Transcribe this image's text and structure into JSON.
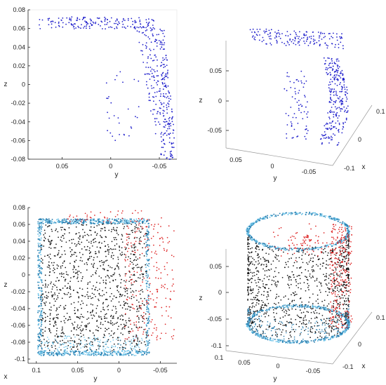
{
  "colors": {
    "blue": "#2222cc",
    "black": "#111111",
    "red": "#dd2222",
    "teal": "#2a7fb0",
    "light_blue": "#6ec3e8"
  },
  "chart_data": [
    {
      "panel": "top-left",
      "type": "scatter",
      "title": "",
      "xlabel": "y",
      "ylabel": "z",
      "x_reversed": true,
      "xlim": [
        0.085,
        -0.068
      ],
      "ylim": [
        -0.08,
        0.08
      ],
      "xticks": [
        "0.05",
        "0",
        "-0.05"
      ],
      "yticks": [
        "0.08",
        "0.06",
        "0.04",
        "0.02",
        "0",
        "-0.02",
        "-0.04",
        "-0.06",
        "-0.08"
      ],
      "series": [
        {
          "color": "#2222cc",
          "regions": [
            {
              "shape": "band",
              "x": [
                0.075,
                -0.045
              ],
              "z": [
                0.058,
                0.074
              ],
              "count": 170
            },
            {
              "shape": "column",
              "x_top": [
                -0.025,
                -0.055
              ],
              "x_bottom": [
                -0.05,
                -0.068
              ],
              "z": [
                -0.08,
                0.06
              ],
              "count": 300
            },
            {
              "shape": "sparse",
              "x": [
                0.005,
                -0.03
              ],
              "z": [
                -0.06,
                0.02
              ],
              "count": 30
            }
          ]
        }
      ]
    },
    {
      "panel": "top-right",
      "type": "scatter3d",
      "title": "",
      "xlabel": "x",
      "ylabel": "y",
      "zlabel": "z",
      "ylim": [
        0.07,
        -0.07
      ],
      "xlim": [
        -0.1,
        0.1
      ],
      "zlim": [
        -0.08,
        0.08
      ],
      "yticks": [
        "0.05",
        "0",
        "-0.05"
      ],
      "xticks": [
        "0.1",
        "0",
        "-0.1"
      ],
      "zticks": [
        "0.05",
        "0",
        "-0.05"
      ],
      "series": [
        {
          "color": "#2222cc",
          "regions": [
            {
              "shape": "band",
              "count": 160
            },
            {
              "shape": "column",
              "count": 260
            }
          ]
        }
      ]
    },
    {
      "panel": "bottom-left",
      "type": "scatter",
      "title": "",
      "xlabel": "y",
      "ylabel": "z",
      "x_side_label": "x",
      "x_reversed": true,
      "xlim": [
        0.11,
        -0.07
      ],
      "ylim": [
        -0.105,
        0.08
      ],
      "xticks": [
        "0.1",
        "0.05",
        "0",
        "-0.05"
      ],
      "yticks": [
        "0.08",
        "0.06",
        "0.04",
        "0.02",
        "0",
        "-0.02",
        "-0.04",
        "-0.06",
        "-0.08",
        "-0.1"
      ],
      "series": [
        {
          "name_hint": "cylinder interior",
          "color": "#111111",
          "shape": "fill",
          "x": [
            0.09,
            -0.045
          ],
          "z": [
            -0.09,
            0.065
          ],
          "count": 1300
        },
        {
          "name_hint": "cylinder rim",
          "color": "#2a7fb0",
          "shape": "rim",
          "count": 900
        },
        {
          "name_hint": "outliers",
          "color": "#dd2222",
          "shape": "right-edge",
          "x": [
            -0.03,
            -0.065
          ],
          "z": [
            -0.08,
            0.075
          ],
          "count": 250
        }
      ]
    },
    {
      "panel": "bottom-right",
      "type": "scatter3d",
      "title": "",
      "xlabel": "x",
      "ylabel": "y",
      "zlabel": "z",
      "ylim": [
        0.1,
        -0.07
      ],
      "xlim": [
        -0.1,
        0.1
      ],
      "zlim": [
        -0.1,
        0.07
      ],
      "yticks": [
        "0.1",
        "0.05",
        "0",
        "-0.05"
      ],
      "xticks": [
        "0.1",
        "0",
        "-0.1"
      ],
      "zticks": [
        "0.05",
        "0",
        "-0.05",
        "-0.1"
      ],
      "series": [
        {
          "name_hint": "cylinder interior",
          "color": "#111111",
          "count": 1100
        },
        {
          "name_hint": "cylinder rim",
          "color": "#2a7fb0",
          "count": 1000
        },
        {
          "name_hint": "outliers",
          "color": "#dd2222",
          "count": 350
        }
      ]
    }
  ]
}
